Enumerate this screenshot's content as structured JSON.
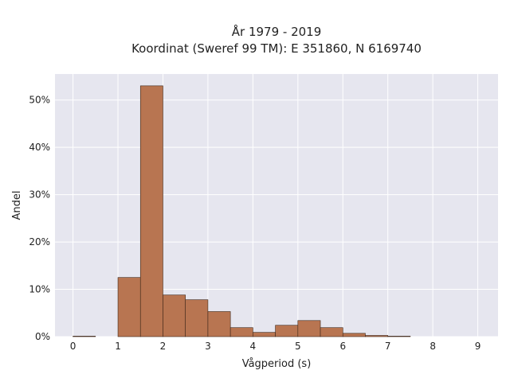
{
  "chart_data": {
    "type": "bar",
    "title_line1": "År 1979 - 2019",
    "title_line2": "Koordinat (Sweref 99 TM): E 351860, N 6169740",
    "xlabel": "Vågperiod (s)",
    "ylabel": "Andel",
    "xlim": [
      -0.4,
      9.45
    ],
    "ylim": [
      0,
      55.5
    ],
    "x_ticks": [
      0,
      1,
      2,
      3,
      4,
      5,
      6,
      7,
      8,
      9
    ],
    "x_tick_labels": [
      "0",
      "1",
      "2",
      "3",
      "4",
      "5",
      "6",
      "7",
      "8",
      "9"
    ],
    "y_ticks": [
      0,
      10,
      20,
      30,
      40,
      50
    ],
    "y_tick_labels": [
      "0%",
      "10%",
      "20%",
      "30%",
      "40%",
      "50%"
    ],
    "grid": true,
    "bar_color": "#b87551",
    "bar_edge_color": "#3d2618",
    "plot_bg": "#e6e6ef",
    "bins": [
      {
        "x0": 0.0,
        "x1": 0.5,
        "value": 0.1
      },
      {
        "x0": 0.5,
        "x1": 1.0,
        "value": 0.0
      },
      {
        "x0": 1.0,
        "x1": 1.5,
        "value": 12.5
      },
      {
        "x0": 1.5,
        "x1": 2.0,
        "value": 53.0
      },
      {
        "x0": 2.0,
        "x1": 2.5,
        "value": 8.8
      },
      {
        "x0": 2.5,
        "x1": 3.0,
        "value": 7.8
      },
      {
        "x0": 3.0,
        "x1": 3.5,
        "value": 5.3
      },
      {
        "x0": 3.5,
        "x1": 4.0,
        "value": 1.9
      },
      {
        "x0": 4.0,
        "x1": 4.5,
        "value": 0.9
      },
      {
        "x0": 4.5,
        "x1": 5.0,
        "value": 2.4
      },
      {
        "x0": 5.0,
        "x1": 5.5,
        "value": 3.4
      },
      {
        "x0": 5.5,
        "x1": 6.0,
        "value": 1.9
      },
      {
        "x0": 6.0,
        "x1": 6.5,
        "value": 0.7
      },
      {
        "x0": 6.5,
        "x1": 7.0,
        "value": 0.25
      },
      {
        "x0": 7.0,
        "x1": 7.5,
        "value": 0.1
      }
    ]
  }
}
